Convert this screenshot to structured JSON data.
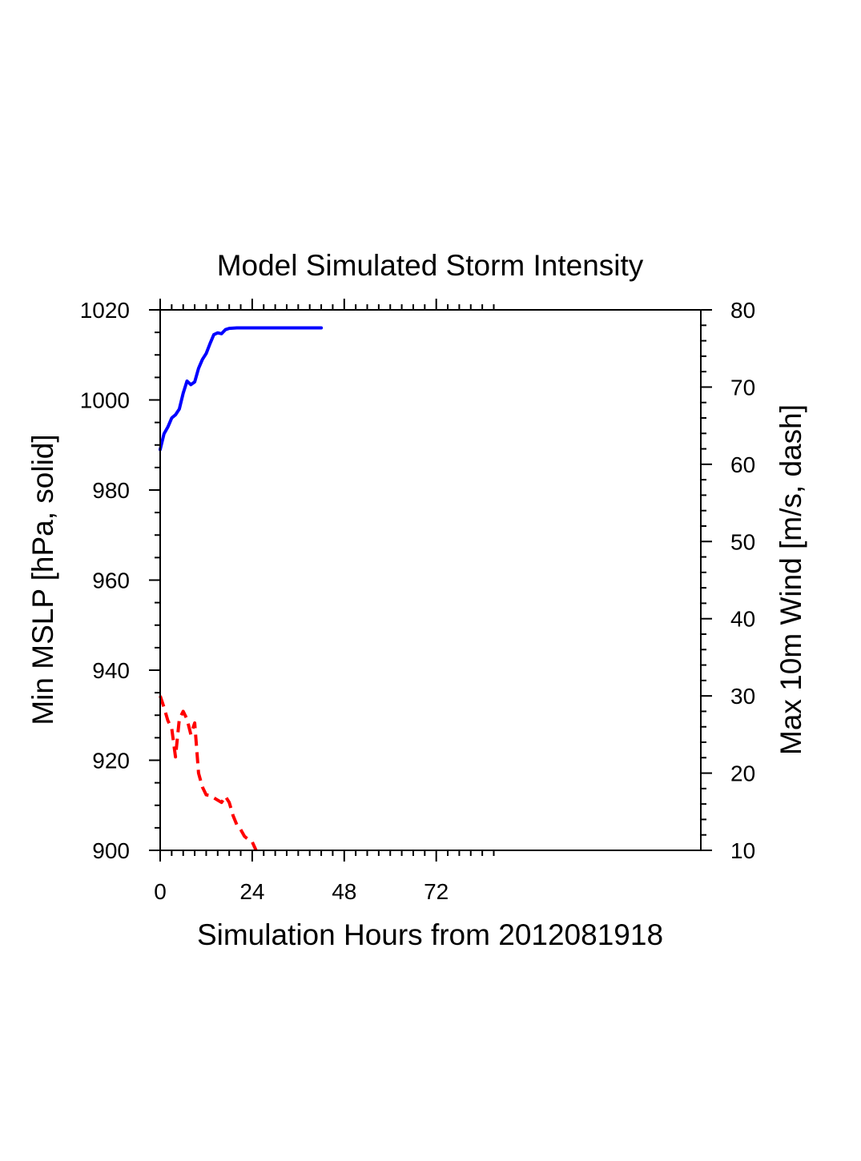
{
  "chart_data": {
    "type": "line",
    "title": "Model Simulated Storm Intensity",
    "xlabel": "Simulation Hours from 2012081918",
    "ylabel": "Min MSLP  [hPa, solid]",
    "y2label": "Max 10m Wind  [m/s, dash]",
    "xlim": [
      0,
      141
    ],
    "ylim": [
      900,
      1020
    ],
    "y2lim": [
      10,
      80
    ],
    "x_ticks": [
      0,
      24,
      48,
      72
    ],
    "x_tick_labels": [
      "0",
      "24",
      "48",
      "72"
    ],
    "y_ticks": [
      900,
      920,
      940,
      960,
      980,
      1000,
      1020
    ],
    "y_tick_labels": [
      "900",
      "920",
      "940",
      "960",
      "980",
      "1000",
      "1020"
    ],
    "y2_ticks": [
      10,
      20,
      30,
      40,
      50,
      60,
      70,
      80
    ],
    "y2_tick_labels": [
      "10",
      "20",
      "30",
      "40",
      "50",
      "60",
      "70",
      "80"
    ],
    "grid": false,
    "series": [
      {
        "axis": "left",
        "style": "solid",
        "color": "#0000ff",
        "x": [
          0,
          1,
          2,
          3,
          4,
          5,
          6,
          7,
          8,
          9,
          10,
          11,
          12,
          13,
          14,
          15,
          16,
          17,
          18,
          20,
          24,
          30,
          36,
          42
        ],
        "y": [
          989,
          992.5,
          994,
          996,
          996.7,
          998,
          1001.5,
          1004.2,
          1003.4,
          1004,
          1007,
          1009,
          1010.3,
          1012.5,
          1014.5,
          1014.9,
          1014.7,
          1015.6,
          1015.9,
          1016,
          1016,
          1016,
          1016,
          1016
        ]
      },
      {
        "axis": "right",
        "style": "dashed",
        "color": "#ff0000",
        "x": [
          0,
          1,
          2,
          3,
          4,
          5,
          6,
          7,
          8,
          9,
          10,
          11,
          12,
          13,
          14,
          15,
          16,
          17,
          18,
          19,
          20,
          21,
          22,
          23,
          24,
          25
        ],
        "y": [
          30,
          28.5,
          26.8,
          25.8,
          22.1,
          27,
          28,
          27,
          25,
          26.5,
          20,
          18.2,
          17.2,
          17.1,
          16.8,
          16.5,
          16.2,
          17,
          16.2,
          14.5,
          13.3,
          12.7,
          11.8,
          11.4,
          11.1,
          10
        ]
      }
    ]
  }
}
